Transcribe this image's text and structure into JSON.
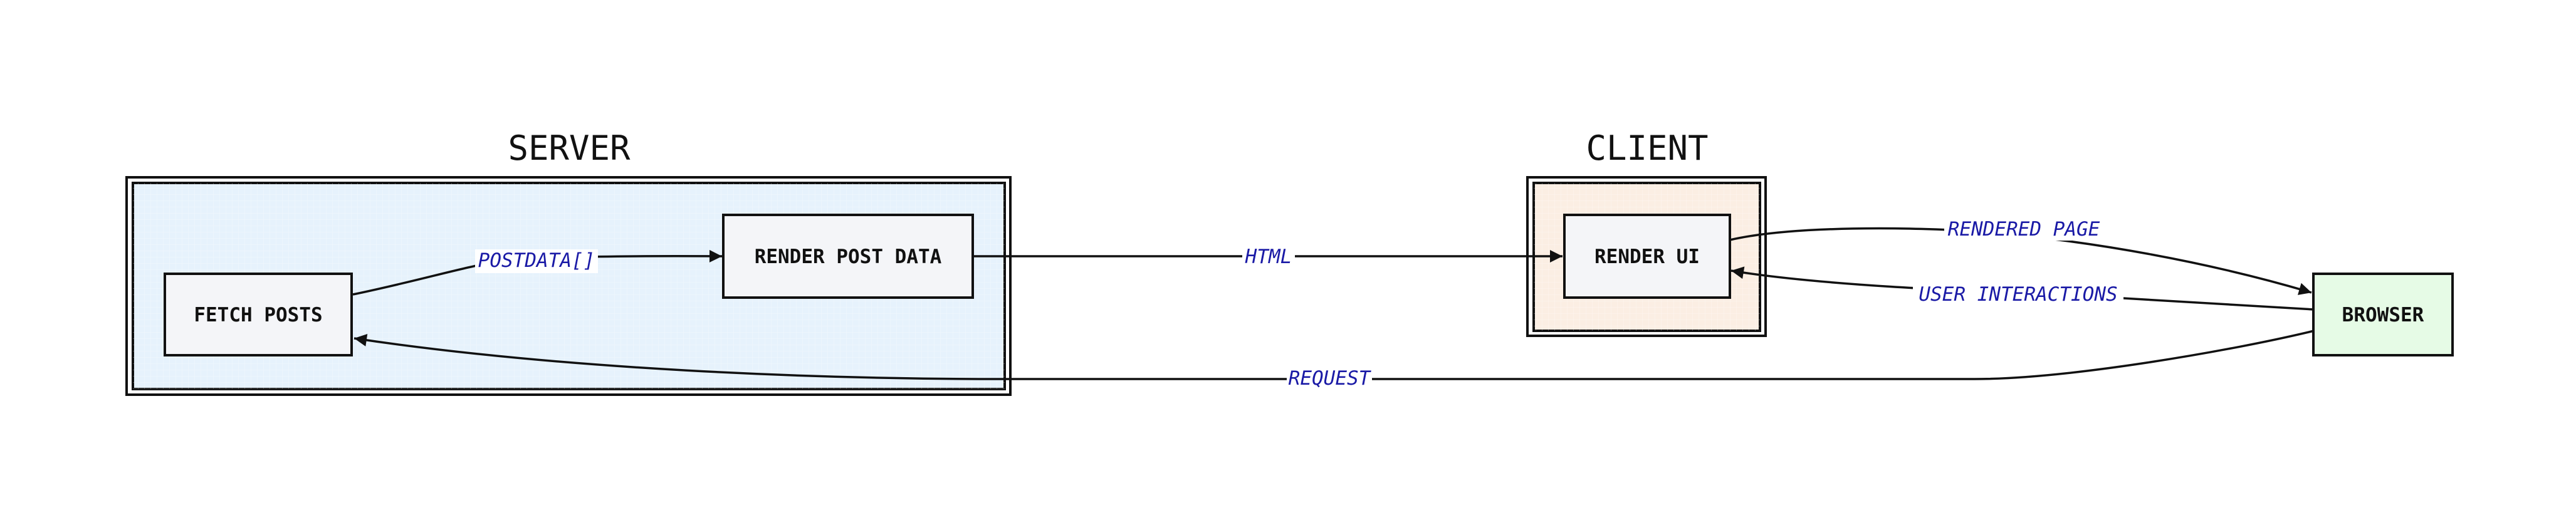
{
  "clusters": {
    "server": {
      "title": "SERVER",
      "fill": "#e6f2fc"
    },
    "client": {
      "title": "CLIENT",
      "fill": "#fbeee3"
    }
  },
  "nodes": {
    "fetch_posts": {
      "label": "FETCH POSTS",
      "fill": "#f4f5f8"
    },
    "render_post_data": {
      "label": "RENDER POST DATA",
      "fill": "#f4f5f8"
    },
    "render_ui": {
      "label": "RENDER UI",
      "fill": "#f4f5f8"
    },
    "browser": {
      "label": "BROWSER",
      "fill": "#e6fbe6"
    }
  },
  "edges": {
    "postdata": {
      "label": "POSTDATA[]"
    },
    "html": {
      "label": "HTML"
    },
    "rendered_page": {
      "label": "RENDERED PAGE"
    },
    "user_interactions": {
      "label": "USER INTERACTIONS"
    },
    "request": {
      "label": "REQUEST"
    }
  },
  "colors": {
    "edge_label": "#1a1aa6",
    "stroke": "#111111"
  }
}
